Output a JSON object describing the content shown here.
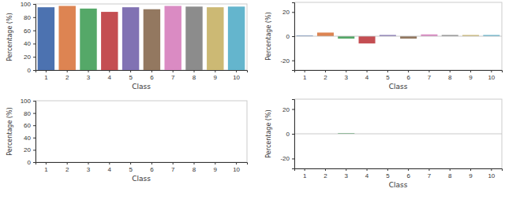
{
  "chart_data": [
    {
      "type": "bar",
      "x_label": "Class",
      "y_label": "Percentage (%)",
      "categories": [
        "1",
        "2",
        "3",
        "4",
        "5",
        "6",
        "7",
        "8",
        "9",
        "10"
      ],
      "values": [
        95,
        97,
        93,
        88,
        95,
        92,
        97,
        96,
        95,
        96
      ],
      "colors": [
        "#4C72B0",
        "#DD8452",
        "#55A868",
        "#C44E52",
        "#8172B3",
        "#937860",
        "#DA8BC3",
        "#8C8C8C",
        "#CCB974",
        "#64B5CD"
      ],
      "ylim": [
        0,
        100
      ],
      "yticks": [
        0,
        20,
        40,
        60,
        80,
        100
      ]
    },
    {
      "type": "bar",
      "x_label": "Class",
      "y_label": "Percentage (%)",
      "categories": [
        "1",
        "2",
        "3",
        "4",
        "5",
        "6",
        "7",
        "8",
        "9",
        "10"
      ],
      "values": [
        0.5,
        3,
        -2,
        -6,
        1,
        -2,
        1.5,
        1,
        1,
        1
      ],
      "colors": [
        "#4C72B0",
        "#DD8452",
        "#55A868",
        "#C44E52",
        "#8172B3",
        "#937860",
        "#DA8BC3",
        "#8C8C8C",
        "#CCB974",
        "#64B5CD"
      ],
      "ylim": [
        -28,
        28
      ],
      "yticks": [
        -20,
        0,
        20
      ]
    },
    {
      "type": "bar",
      "x_label": "Class",
      "y_label": "Percentage (%)",
      "categories": [
        "1",
        "2",
        "3",
        "4",
        "5",
        "6",
        "7",
        "8",
        "9",
        "10"
      ],
      "values": [
        0,
        0,
        0,
        0,
        0,
        0,
        0,
        0,
        0,
        0
      ],
      "colors": [
        "#4C72B0",
        "#DD8452",
        "#55A868",
        "#C44E52",
        "#8172B3",
        "#937860",
        "#DA8BC3",
        "#8C8C8C",
        "#CCB974",
        "#64B5CD"
      ],
      "ylim": [
        0,
        100
      ],
      "yticks": [
        0,
        20,
        40,
        60,
        80,
        100
      ]
    },
    {
      "type": "bar",
      "x_label": "Class",
      "y_label": "Percentage (%)",
      "categories": [
        "1",
        "2",
        "3",
        "4",
        "5",
        "6",
        "7",
        "8",
        "9",
        "10"
      ],
      "values": [
        0,
        0,
        0.5,
        0,
        0,
        0,
        0,
        0,
        0,
        0
      ],
      "colors": [
        "#4C72B0",
        "#DD8452",
        "#55A868",
        "#C44E52",
        "#8172B3",
        "#937860",
        "#DA8BC3",
        "#8C8C8C",
        "#CCB974",
        "#64B5CD"
      ],
      "ylim": [
        -28,
        28
      ],
      "yticks": [
        -20,
        0,
        20
      ]
    }
  ]
}
